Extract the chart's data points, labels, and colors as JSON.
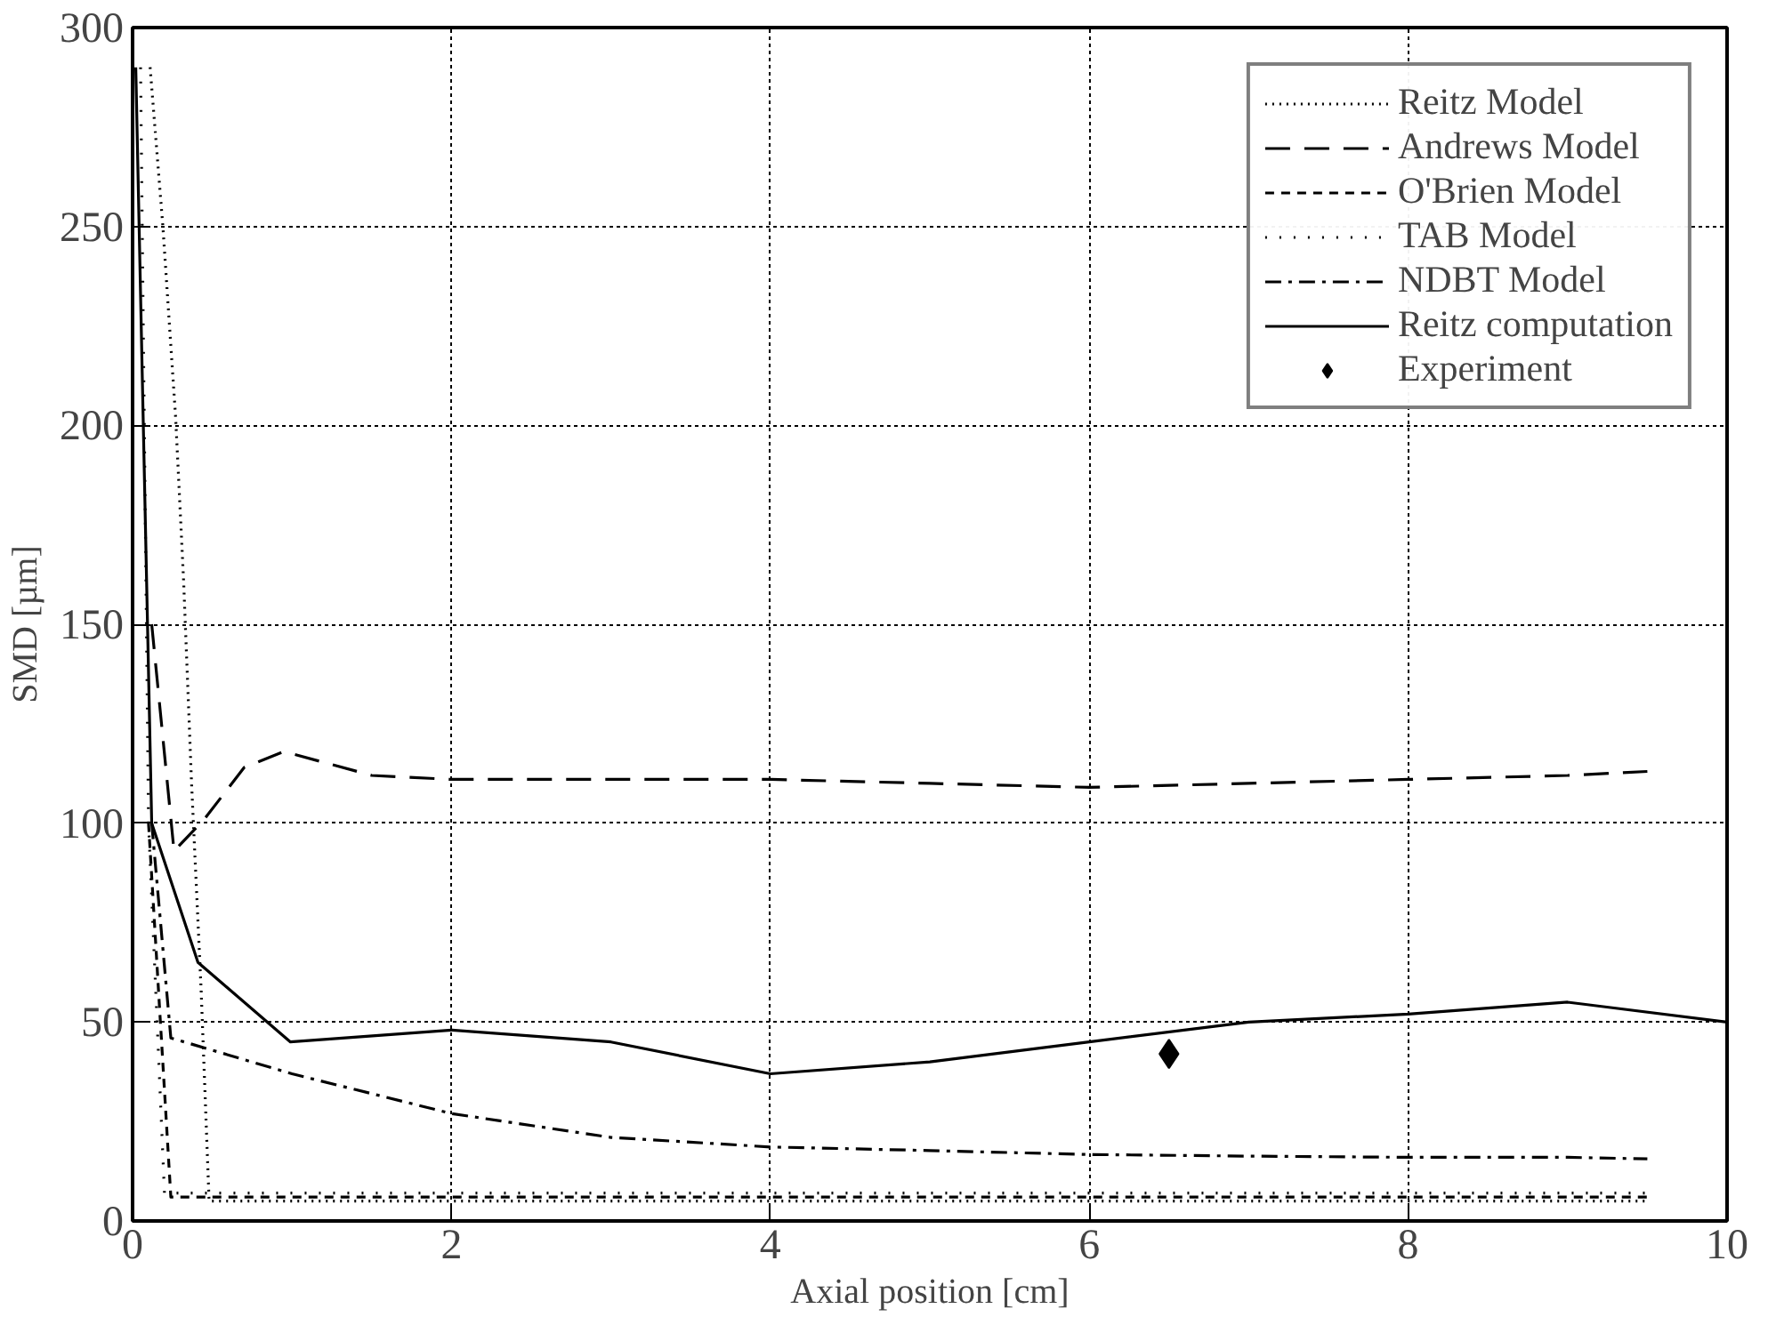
{
  "chart_data": {
    "type": "line",
    "xlabel": "Axial position [cm]",
    "ylabel": "SMD [µm]",
    "xlim": [
      0,
      10
    ],
    "ylim": [
      0,
      300
    ],
    "xticks": [
      0,
      2,
      4,
      6,
      8,
      10
    ],
    "yticks": [
      0,
      50,
      100,
      150,
      200,
      250,
      300
    ],
    "grid": true,
    "legend": "top right",
    "series": [
      {
        "name": "Reitz Model",
        "color": "#000000",
        "line_style": "dotted",
        "x": [
          0.11,
          0.19,
          0.27,
          0.32,
          0.37,
          0.43,
          0.48,
          1,
          2,
          3,
          4,
          5,
          6,
          7,
          8,
          9,
          9.5
        ],
        "values": [
          290,
          250,
          202,
          161,
          110,
          58,
          5,
          5,
          5,
          5,
          5,
          5,
          5,
          5,
          5,
          5,
          5
        ]
      },
      {
        "name": "Andrews Model",
        "color": "#000000",
        "line_style": "longdash",
        "x": [
          0.12,
          0.26,
          0.45,
          0.7,
          0.95,
          1.5,
          2,
          3,
          4,
          5,
          6,
          7,
          8,
          9,
          9.5
        ],
        "values": [
          150,
          93,
          101,
          114,
          118,
          112,
          111,
          111,
          111,
          110,
          109,
          110,
          111,
          112,
          113
        ]
      },
      {
        "name": "O'Brien Model",
        "color": "#000000",
        "line_style": "dashed",
        "x": [
          0.1,
          0.24,
          1,
          2,
          3,
          4,
          5,
          6,
          7,
          8,
          9,
          9.5
        ],
        "values": [
          100,
          6,
          6,
          6,
          6,
          6,
          6,
          6,
          6,
          6,
          6,
          6
        ]
      },
      {
        "name": "TAB Model",
        "color": "#000000",
        "line_style": "sparsedotted",
        "x": [
          0.05,
          0.1,
          0.2,
          1,
          2,
          3,
          4,
          5,
          6,
          7,
          8,
          9,
          9.5
        ],
        "values": [
          290,
          100,
          7,
          7,
          7,
          7,
          7,
          7,
          7,
          7,
          7,
          7,
          7
        ]
      },
      {
        "name": "NDBT Model",
        "color": "#000000",
        "line_style": "dashdot",
        "x": [
          0.12,
          0.24,
          1,
          2,
          3,
          4,
          5,
          6,
          7,
          8,
          9,
          9.5
        ],
        "values": [
          100,
          46,
          37,
          27,
          21,
          18.6,
          17.7,
          16.7,
          16.3,
          16,
          16,
          15.6
        ]
      },
      {
        "name": "Reitz computation",
        "color": "#000000",
        "line_style": "solid",
        "x": [
          0.02,
          0.12,
          0.41,
          0.99,
          2,
          3,
          4,
          5,
          6,
          7,
          8,
          9,
          10
        ],
        "values": [
          290,
          100,
          65,
          45,
          48,
          45,
          37,
          40,
          45,
          50,
          52,
          55,
          50
        ]
      },
      {
        "name": "Experiment",
        "type": "scatter",
        "marker": "diamond",
        "color": "#000000",
        "x": [
          6.5
        ],
        "values": [
          42
        ]
      }
    ]
  }
}
